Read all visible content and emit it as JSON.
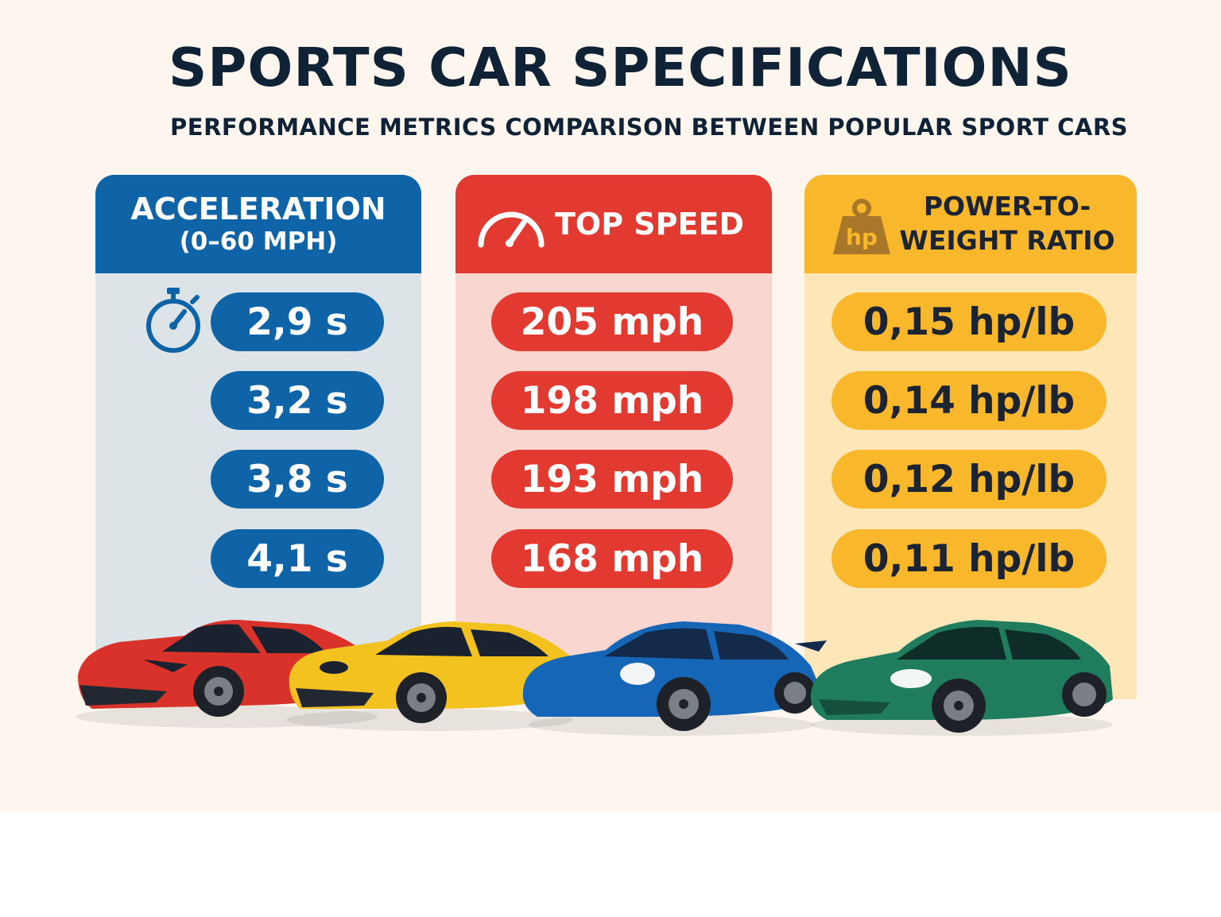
{
  "title": "SPORTS CAR SPECIFICATIONS",
  "subtitle": "PERFORMANCE METRICS COMPARISON BETWEEN POPULAR SPORT CARS",
  "panels": {
    "acceleration": {
      "heading": "ACCELERATION",
      "subheading": "(0–60 MPH)",
      "icon": "stopwatch-icon",
      "color": "#0f64a8",
      "values": [
        "2,9 s",
        "3,2 s",
        "3,8 s",
        "4,1 s"
      ]
    },
    "top_speed": {
      "heading": "TOP SPEED",
      "icon": "speedometer-icon",
      "color": "#e23a30",
      "values": [
        "205 mph",
        "198 mph",
        "193 mph",
        "168 mph"
      ]
    },
    "power_to_weight": {
      "heading_line1": "POWER-TO-",
      "heading_line2": "WEIGHT RATIO",
      "icon": "weight-hp-icon",
      "icon_label": "hp",
      "color": "#f9b72c",
      "values": [
        "0,15 hp/lb",
        "0,14 hp/lb",
        "0,12 hp/lb",
        "0,11 hp/lb"
      ]
    }
  },
  "cars": [
    {
      "icon": "red-sports-car",
      "color": "#d8322a"
    },
    {
      "icon": "yellow-sports-car",
      "color": "#f4c21f"
    },
    {
      "icon": "blue-sports-car",
      "color": "#1666b8"
    },
    {
      "icon": "green-sports-car",
      "color": "#1f7d5e"
    }
  ]
}
